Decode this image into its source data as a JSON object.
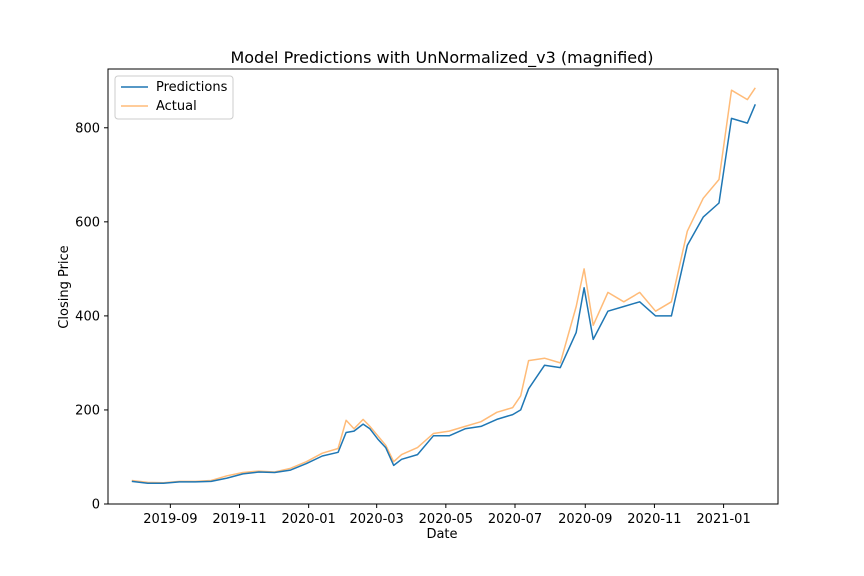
{
  "chart_data": {
    "type": "line",
    "title": "Model Predictions with UnNormalized_v3 (magnified)",
    "xlabel": "Date",
    "ylabel": "Closing Price",
    "x_ticks": [
      "2019-09",
      "2019-11",
      "2020-01",
      "2020-03",
      "2020-05",
      "2020-07",
      "2020-09",
      "2020-11",
      "2021-01"
    ],
    "y_ticks": [
      0,
      200,
      400,
      600,
      800
    ],
    "xlim": [
      "2019-07-08",
      "2021-02-18"
    ],
    "ylim": [
      0,
      925
    ],
    "grid": false,
    "legend_position": "top-left",
    "x": [
      "2019-07-29",
      "2019-08-12",
      "2019-08-26",
      "2019-09-09",
      "2019-09-23",
      "2019-10-07",
      "2019-10-21",
      "2019-11-04",
      "2019-11-18",
      "2019-12-02",
      "2019-12-16",
      "2019-12-30",
      "2020-01-13",
      "2020-01-27",
      "2020-02-03",
      "2020-02-10",
      "2020-02-18",
      "2020-02-24",
      "2020-03-02",
      "2020-03-09",
      "2020-03-16",
      "2020-03-23",
      "2020-04-06",
      "2020-04-20",
      "2020-05-04",
      "2020-05-18",
      "2020-06-01",
      "2020-06-15",
      "2020-06-29",
      "2020-07-06",
      "2020-07-13",
      "2020-07-27",
      "2020-08-10",
      "2020-08-24",
      "2020-08-31",
      "2020-09-08",
      "2020-09-21",
      "2020-10-05",
      "2020-10-19",
      "2020-11-02",
      "2020-11-16",
      "2020-11-30",
      "2020-12-14",
      "2020-12-28",
      "2021-01-08",
      "2021-01-22",
      "2021-01-29"
    ],
    "series": [
      {
        "name": "Predictions",
        "color": "#1f77b4",
        "values": [
          48,
          44,
          44,
          47,
          47,
          48,
          55,
          64,
          68,
          67,
          72,
          86,
          102,
          110,
          152,
          155,
          170,
          160,
          138,
          120,
          82,
          95,
          105,
          145,
          145,
          160,
          165,
          180,
          190,
          200,
          245,
          295,
          290,
          365,
          460,
          350,
          410,
          420,
          430,
          400,
          400,
          550,
          610,
          640,
          820,
          810,
          850
        ]
      },
      {
        "name": "Actual",
        "color": "#ffbb78",
        "values": [
          50,
          46,
          45,
          48,
          48,
          50,
          60,
          67,
          70,
          68,
          76,
          90,
          108,
          118,
          178,
          160,
          180,
          165,
          145,
          125,
          90,
          105,
          120,
          150,
          155,
          165,
          175,
          195,
          205,
          230,
          305,
          310,
          300,
          420,
          500,
          380,
          450,
          430,
          450,
          410,
          430,
          580,
          650,
          690,
          880,
          860,
          885
        ]
      }
    ]
  }
}
